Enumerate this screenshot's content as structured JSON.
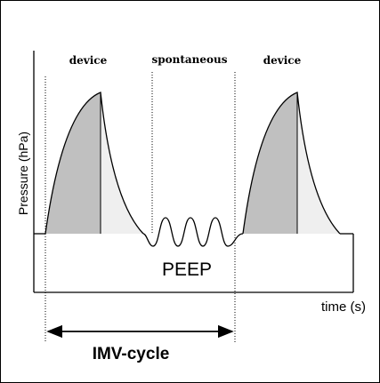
{
  "diagram": {
    "phase_labels": {
      "device_left": "device",
      "spontaneous": "spontaneous",
      "device_right": "device"
    },
    "y_axis_label": "Pressure  (hPa)",
    "x_axis_label": "time (s)",
    "baseline_label": "PEEP",
    "cycle_label": "IMV-cycle",
    "colors": {
      "line": "#000000",
      "inspiration_fill": "#c0c0c0",
      "expiration_fill": "#efefef",
      "background": "#ffffff"
    }
  }
}
